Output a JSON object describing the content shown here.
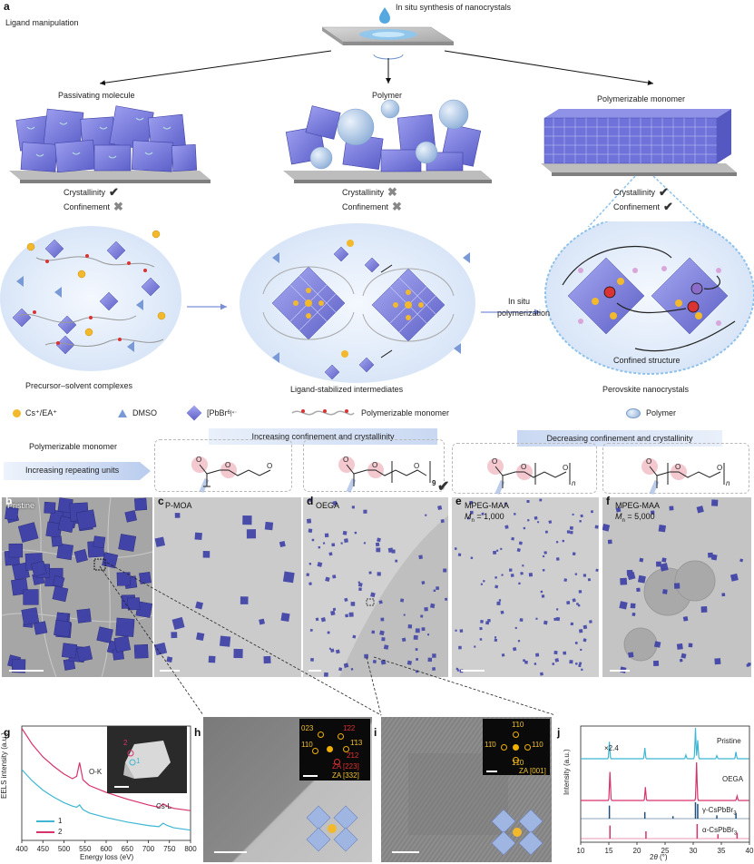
{
  "panel_a": {
    "letter": "a",
    "top_title": "In situ synthesis of nanocrystals",
    "left_title": "Ligand manipulation",
    "routes": [
      {
        "label": "Passivating molecule",
        "crystallinity": "Crystallinity",
        "confinement": "Confinement",
        "cryst_mark": "✔",
        "conf_mark": "✖"
      },
      {
        "label": "Polymer",
        "crystallinity": "Crystallinity",
        "confinement": "Confinement",
        "cryst_mark": "✖",
        "conf_mark": "✖"
      },
      {
        "label": "Polymerizable monomer",
        "crystallinity": "Crystallinity",
        "confinement": "Confinement",
        "cryst_mark": "✔",
        "conf_mark": "✔"
      }
    ],
    "stage_labels": {
      "precursor": "Precursor–solvent complexes",
      "intermediate": "Ligand-stabilized intermediates",
      "confined": "Confined structure",
      "product": "Perovskite nanocrystals",
      "in_situ_1": "In situ",
      "in_situ_2": "polymerization"
    },
    "legend": {
      "cs": "Cs⁺/EA⁺",
      "dmso": "DMSO",
      "pbbr_main": "[PbBr",
      "pbbr_sub": "6",
      "pbbr_sup": "]⁴⁻",
      "monomer": "Polymerizable monomer",
      "polymer": "Polymer"
    }
  },
  "series_header": {
    "left_title": "Polymerizable monomer",
    "arrow_label": "Increasing repeating units",
    "banner_left": "Increasing  confinement and crystallinity",
    "banner_right": "Decreasing confinement and crystallinity",
    "rep_9": "9",
    "rep_n": "n",
    "check": "✔"
  },
  "micrographs": [
    {
      "letter": "b",
      "label": "Pristine",
      "sub": ""
    },
    {
      "letter": "c",
      "label": "P-MOA",
      "sub": ""
    },
    {
      "letter": "d",
      "label": "OEGA",
      "sub": ""
    },
    {
      "letter": "e",
      "label": "MPEG-MAA",
      "sub_prefix": "M",
      "sub_n": "n",
      "sub_value": " = 1,000"
    },
    {
      "letter": "f",
      "label": "MPEG-MAA",
      "sub_prefix": "M",
      "sub_n": "n",
      "sub_value": " = 5,000"
    }
  ],
  "panel_h": {
    "letter": "h",
    "fft_labels": [
      "023",
      "1̄22",
      "110",
      "1̄13",
      "2̄12",
      "ZA [223]",
      "ZA [332]"
    ]
  },
  "panel_i": {
    "letter": "i",
    "fft_labels": [
      "1̄10",
      "110",
      "11̄0",
      "1̄1̄0",
      "ZA [001]"
    ]
  },
  "chart_data": [
    {
      "type": "line",
      "letter": "g",
      "xlabel": "Energy loss (eV)",
      "ylabel": "EELS intensity (a.u.)",
      "xlim": [
        400,
        800
      ],
      "xticks": [
        400,
        450,
        500,
        550,
        600,
        650,
        700,
        750,
        800
      ],
      "annotations": [
        "O-K",
        "Cs-L"
      ],
      "inset_labels": [
        "2",
        "1"
      ],
      "colors": {
        "1": "#3fb6d3",
        "2": "#d6336c"
      },
      "series": [
        {
          "name": "1",
          "x": [
            400,
            425,
            450,
            475,
            500,
            520,
            530,
            537,
            545,
            560,
            600,
            650,
            700,
            725,
            735,
            745,
            760,
            800
          ],
          "y": [
            0.62,
            0.52,
            0.44,
            0.38,
            0.33,
            0.3,
            0.29,
            0.31,
            0.27,
            0.24,
            0.2,
            0.16,
            0.13,
            0.12,
            0.15,
            0.13,
            0.11,
            0.09
          ]
        },
        {
          "name": "2",
          "x": [
            400,
            425,
            450,
            475,
            500,
            520,
            530,
            537,
            545,
            560,
            600,
            650,
            700,
            725,
            735,
            745,
            760,
            800
          ],
          "y": [
            0.98,
            0.84,
            0.73,
            0.65,
            0.58,
            0.54,
            0.56,
            0.68,
            0.53,
            0.48,
            0.42,
            0.36,
            0.31,
            0.29,
            0.32,
            0.3,
            0.28,
            0.26
          ]
        }
      ]
    },
    {
      "type": "line",
      "letter": "j",
      "xlabel": "2θ (°)",
      "xlabel_main": "2",
      "xlabel_theta": "θ",
      "xlabel_unit": " (°)",
      "ylabel": "Intensity (a.u.)",
      "xlim": [
        10,
        40
      ],
      "xticks": [
        10,
        15,
        20,
        25,
        30,
        35,
        40
      ],
      "multiplier": "×2.4",
      "colors": {
        "Pristine": "#3fb6d3",
        "OEGA": "#d6336c",
        "gamma": "#1f4e79",
        "alpha": "#d6336c"
      },
      "series": [
        {
          "name": "Pristine",
          "peaks": [
            [
              15.1,
              0.55
            ],
            [
              21.4,
              0.35
            ],
            [
              28.7,
              0.12
            ],
            [
              30.4,
              1.0
            ],
            [
              30.8,
              0.6
            ],
            [
              34.2,
              0.1
            ],
            [
              37.6,
              0.22
            ]
          ]
        },
        {
          "name": "OEGA",
          "peaks": [
            [
              15.2,
              0.75
            ],
            [
              21.5,
              0.35
            ],
            [
              30.6,
              1.0
            ],
            [
              37.8,
              0.12
            ]
          ]
        },
        {
          "name": "γ-CsPbBr",
          "label_main": "γ-CsPbBr",
          "label_sub": "3",
          "peaks": [
            [
              15.1,
              0.8
            ],
            [
              21.4,
              0.4
            ],
            [
              26.4,
              0.15
            ],
            [
              30.4,
              1.0
            ],
            [
              30.8,
              0.9
            ],
            [
              34.2,
              0.2
            ],
            [
              37.6,
              0.35
            ]
          ]
        },
        {
          "name": "α-CsPbBr",
          "label_main": "α-CsPbBr",
          "label_sub": "3",
          "peaks": [
            [
              15.2,
              0.9
            ],
            [
              21.6,
              0.5
            ],
            [
              30.7,
              1.0
            ],
            [
              34.4,
              0.3
            ],
            [
              37.8,
              0.4
            ]
          ]
        }
      ]
    }
  ],
  "colors": {
    "perovskite": "#7c7fe0",
    "perovskite_dark": "#4f50b8",
    "tem_bg": "#c9c9c9",
    "nanocrystal": "#3c3fa6",
    "cs_ball": "#f2b92d",
    "dmso": "#7a9ad6"
  }
}
